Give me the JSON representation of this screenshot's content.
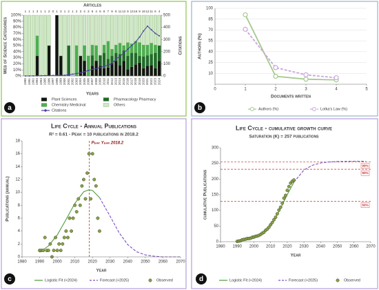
{
  "chart_data": [
    {
      "type": "bar",
      "panel_label": "a",
      "title": "Articles",
      "xlabel": "Years",
      "ylabel": "Web of Science Categories",
      "y2label": "Citations",
      "x": [
        1990,
        1991,
        1992,
        1993,
        1994,
        1995,
        1996,
        1997,
        1998,
        1999,
        2000,
        2001,
        2002,
        2003,
        2004,
        2005,
        2006,
        2007,
        2008,
        2009,
        2010,
        2011,
        2012,
        2013,
        2014,
        2015,
        2016,
        2017,
        2018,
        2019,
        2020,
        2021,
        2022,
        2023,
        2024
      ],
      "top_labels": [
        1,
        1,
        1,
        3,
        1,
        1,
        2,
        0,
        1,
        3,
        1,
        2,
        1,
        2,
        3,
        4,
        3,
        6,
        4,
        6,
        8,
        7,
        9,
        8,
        11,
        12,
        9,
        13,
        16,
        9,
        16,
        12,
        11,
        6,
        4
      ],
      "ylim": [
        0,
        100
      ],
      "yticks": [
        {
          "value": 0,
          "label": "0%"
        },
        {
          "value": 10,
          "label": "10%"
        },
        {
          "value": 20,
          "label": "20%"
        },
        {
          "value": 30,
          "label": "30%"
        },
        {
          "value": 40,
          "label": "40%"
        },
        {
          "value": 50,
          "label": "50%"
        },
        {
          "value": 60,
          "label": "60%"
        },
        {
          "value": 70,
          "label": "70%"
        },
        {
          "value": 80,
          "label": "80%"
        },
        {
          "value": 90,
          "label": "90%"
        },
        {
          "value": 100,
          "label": "100%"
        }
      ],
      "y2lim": [
        0,
        500
      ],
      "y2ticks": [
        0,
        100,
        200,
        300,
        400,
        500
      ],
      "series": [
        {
          "name": "Plant Sciences",
          "color": "#141414",
          "style": "bar",
          "values": [
            0,
            0,
            0,
            33,
            0,
            0,
            50,
            0,
            100,
            33,
            0,
            0,
            0,
            0,
            33,
            25,
            0,
            17,
            25,
            17,
            13,
            14,
            22,
            25,
            18,
            25,
            11,
            15,
            19,
            22,
            13,
            17,
            18,
            13,
            25
          ]
        },
        {
          "name": "Pharmacology Pharmacy",
          "color": "#1f6b2b",
          "style": "bar",
          "values": [
            0,
            0,
            0,
            0,
            0,
            0,
            0,
            0,
            0,
            0,
            0,
            50,
            0,
            0,
            0,
            0,
            0,
            17,
            0,
            17,
            25,
            14,
            11,
            13,
            18,
            17,
            22,
            23,
            19,
            11,
            19,
            17,
            18,
            25,
            25
          ]
        },
        {
          "name": "Chemistry Medicinal",
          "color": "#4caf50",
          "style": "bar",
          "values": [
            0,
            0,
            0,
            33,
            0,
            0,
            0,
            0,
            0,
            0,
            0,
            0,
            0,
            50,
            0,
            25,
            33,
            17,
            25,
            0,
            13,
            29,
            11,
            13,
            18,
            8,
            22,
            15,
            19,
            22,
            19,
            17,
            18,
            13,
            0
          ]
        },
        {
          "name": "Others",
          "color": "#cfe8c6",
          "style": "bar",
          "values": [
            100,
            100,
            100,
            34,
            100,
            100,
            50,
            0,
            0,
            67,
            100,
            50,
            100,
            50,
            67,
            50,
            67,
            49,
            50,
            66,
            49,
            43,
            56,
            49,
            46,
            50,
            45,
            47,
            43,
            45,
            49,
            49,
            46,
            49,
            50
          ]
        },
        {
          "name": "Citations",
          "color": "#4a3f9f",
          "style": "line",
          "axis": "y2",
          "values": [
            0,
            0,
            1,
            1,
            2,
            3,
            3,
            4,
            5,
            5,
            6,
            10,
            15,
            20,
            25,
            35,
            45,
            55,
            60,
            70,
            80,
            90,
            100,
            140,
            160,
            190,
            220,
            250,
            280,
            320,
            370,
            410,
            380,
            350,
            330
          ]
        }
      ]
    },
    {
      "type": "line",
      "panel_label": "b",
      "xlabel": "Documents written",
      "ylabel": "Authors (%)",
      "xlim": [
        0,
        5
      ],
      "xticks": [
        0,
        1,
        2,
        3,
        4,
        5
      ],
      "ylim": [
        -5,
        100
      ],
      "yticks": [
        10,
        25,
        40,
        55,
        70,
        85,
        100
      ],
      "grid": true,
      "series": [
        {
          "name": "Authors (%)",
          "color": "#a5c98f",
          "style": "line-markers",
          "x": [
            1,
            2,
            3,
            4
          ],
          "values": [
            91,
            6,
            2,
            1
          ]
        },
        {
          "name": "Lotka's Law (%)",
          "color": "#c9a6dc",
          "style": "dashed-markers",
          "x": [
            1,
            2,
            3,
            4
          ],
          "values": [
            71,
            18,
            8,
            4
          ]
        }
      ]
    },
    {
      "type": "line",
      "panel_label": "c",
      "title": "Life Cycle - Annual Publications",
      "subtitle": "R² = 0.61 - Peak = 10 publications in 2018.2",
      "xlabel": "Year",
      "ylabel": "Publications (annual)",
      "xlim": [
        1980,
        2070
      ],
      "xticks": [
        1980,
        1990,
        2000,
        2010,
        2020,
        2030,
        2040,
        2050,
        2060,
        2070
      ],
      "ylim": [
        0,
        18
      ],
      "yticks": [
        0,
        2,
        4,
        6,
        8,
        10,
        12,
        14,
        16,
        18
      ],
      "peak_line": {
        "value": 2018.2,
        "label": "Peak Year 2018.2"
      },
      "series": [
        {
          "name": "Logistic Fit (<2024)",
          "color": "#4e9a3a",
          "style": "line",
          "x": [
            1990,
            1995,
            2000,
            2005,
            2010,
            2015,
            2018,
            2020,
            2024
          ],
          "values": [
            0.7,
            1.7,
            3.4,
            5.8,
            8.3,
            10.1,
            10.4,
            10.3,
            9.2
          ]
        },
        {
          "name": "Forecast (>2025)",
          "color": "#7b4fbf",
          "style": "dashed",
          "x": [
            2024,
            2030,
            2035,
            2040,
            2045,
            2050,
            2055,
            2060,
            2065,
            2070
          ],
          "values": [
            9.2,
            6.3,
            3.8,
            1.9,
            0.8,
            0.3,
            0.1,
            0,
            0,
            0
          ]
        },
        {
          "name": "Observed",
          "color": "#8aa04a",
          "style": "scatter",
          "x": [
            1990,
            1991,
            1992,
            1993,
            1994,
            1995,
            1996,
            1997,
            1998,
            1999,
            2000,
            2001,
            2002,
            2003,
            2004,
            2005,
            2006,
            2007,
            2008,
            2009,
            2010,
            2011,
            2012,
            2013,
            2014,
            2015,
            2016,
            2017,
            2018,
            2019,
            2020,
            2021,
            2022,
            2023,
            2024
          ],
          "values": [
            1,
            1,
            1,
            3,
            1,
            1,
            2,
            0,
            1,
            3,
            1,
            2,
            1,
            2,
            3,
            4,
            3,
            6,
            4,
            6,
            8,
            7,
            9,
            8,
            11,
            12,
            9,
            13,
            16,
            9,
            16,
            12,
            11,
            6,
            4
          ]
        }
      ]
    },
    {
      "type": "line",
      "panel_label": "d",
      "title": "Life Cycle - cumulative growth curve",
      "subtitle": "Saturation (K) = 257 publications",
      "xlabel": "Year",
      "ylabel": "cumulative Publications",
      "xlim": [
        1980,
        2070
      ],
      "xticks": [
        1980,
        1990,
        2000,
        2010,
        2020,
        2030,
        2040,
        2050,
        2060,
        2070
      ],
      "ylim": [
        0,
        300
      ],
      "yticks": [
        0,
        50,
        100,
        150,
        200,
        250,
        300
      ],
      "ref_lines": [
        {
          "value": 254.4,
          "label": "99%"
        },
        {
          "value": 231.3,
          "label": "90%"
        },
        {
          "value": 128.5,
          "label": "50%"
        }
      ],
      "series": [
        {
          "name": "Logistic Fit (<2024)",
          "color": "#4e9a3a",
          "style": "line",
          "x": [
            1990,
            1995,
            2000,
            2005,
            2010,
            2015,
            2020,
            2024
          ],
          "values": [
            2,
            4.6,
            10.8,
            24.2,
            51,
            95.5,
            150.6,
            190
          ]
        },
        {
          "name": "Forecast (>2025)",
          "color": "#7b4fbf",
          "style": "dashed",
          "x": [
            2024,
            2030,
            2035,
            2040,
            2045,
            2050,
            2060,
            2067
          ],
          "values": [
            190,
            229,
            244,
            251.5,
            254.7,
            256,
            257,
            257
          ]
        },
        {
          "name": "Observed",
          "color": "#8aa04a",
          "style": "scatter",
          "x": [
            1990,
            1991,
            1992,
            1993,
            1994,
            1995,
            1996,
            1997,
            1998,
            1999,
            2000,
            2001,
            2002,
            2003,
            2004,
            2005,
            2006,
            2007,
            2008,
            2009,
            2010,
            2011,
            2012,
            2013,
            2014,
            2015,
            2016,
            2017,
            2018,
            2019,
            2020,
            2021,
            2022,
            2023,
            2024
          ],
          "values": [
            1,
            2,
            3,
            6,
            7,
            8,
            10,
            10,
            11,
            14,
            15,
            17,
            18,
            20,
            23,
            27,
            30,
            36,
            40,
            46,
            54,
            61,
            70,
            78,
            89,
            101,
            110,
            123,
            139,
            148,
            164,
            176,
            187,
            193,
            197
          ]
        }
      ]
    }
  ]
}
